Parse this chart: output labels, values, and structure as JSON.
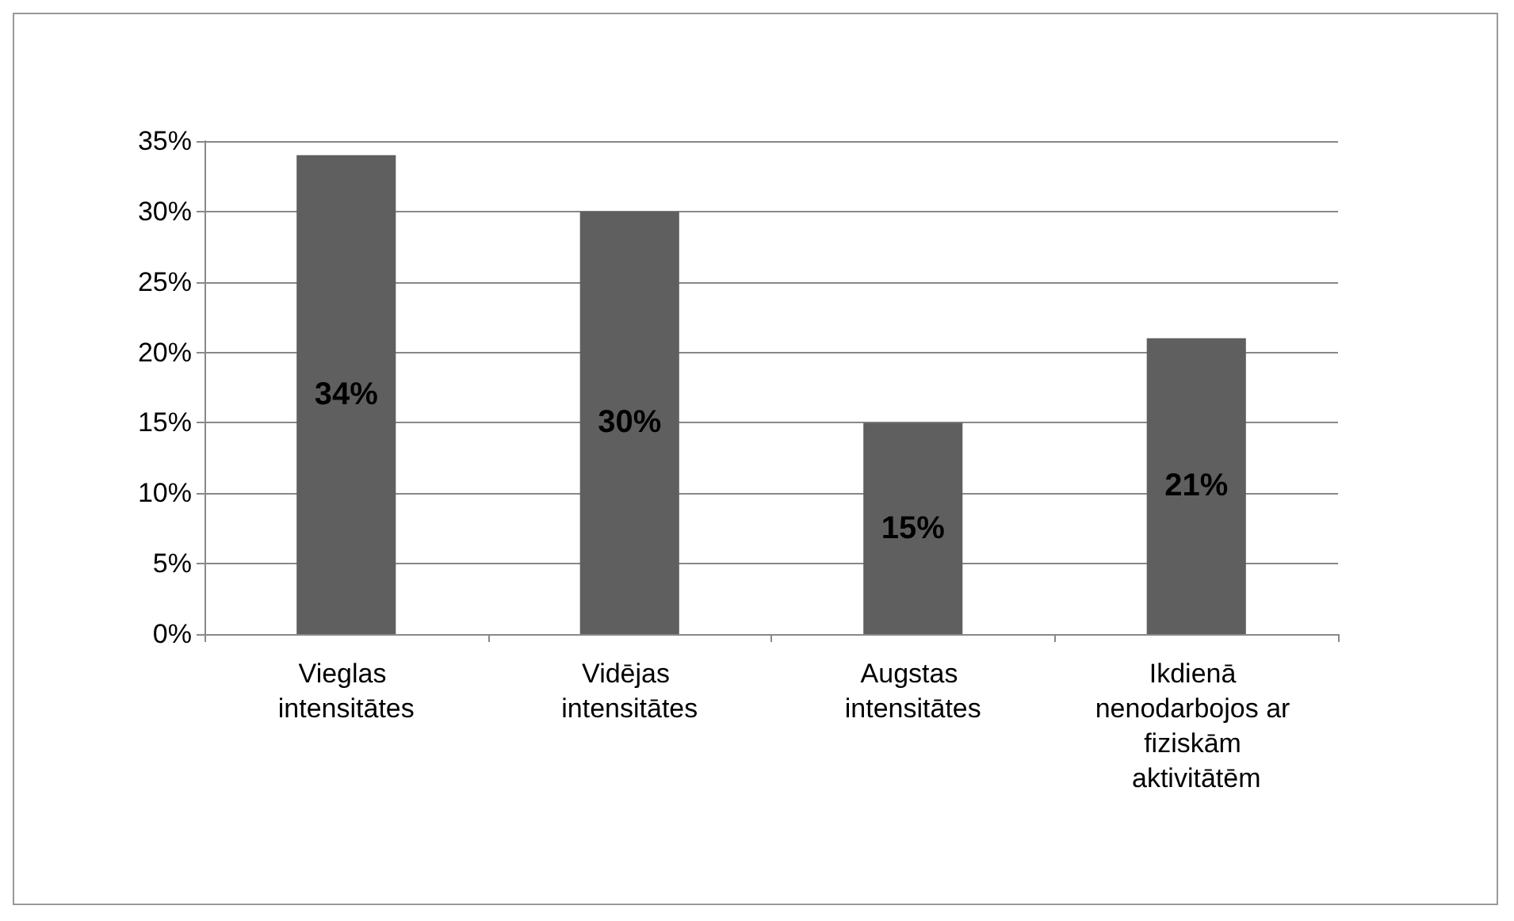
{
  "chart_data": {
    "type": "bar",
    "categories": [
      "Vieglas intensitātes",
      "Vidējas intensitātes",
      "Augstas intensitātes",
      "Ikdienā nenodarbojos ar fiziskām aktivitātēm"
    ],
    "values": [
      34,
      30,
      15,
      21
    ],
    "value_labels": [
      "34%",
      "30%",
      "15%",
      "21%"
    ],
    "color": "#5f5f5f",
    "ylim": [
      0,
      35
    ],
    "yticks": [
      {
        "value": 0,
        "label": "0%"
      },
      {
        "value": 5,
        "label": "5%"
      },
      {
        "value": 10,
        "label": "10%"
      },
      {
        "value": 15,
        "label": "15%"
      },
      {
        "value": 20,
        "label": "20%"
      },
      {
        "value": 25,
        "label": "25%"
      },
      {
        "value": 30,
        "label": "30%"
      },
      {
        "value": 35,
        "label": "35%"
      }
    ],
    "grid": true
  }
}
